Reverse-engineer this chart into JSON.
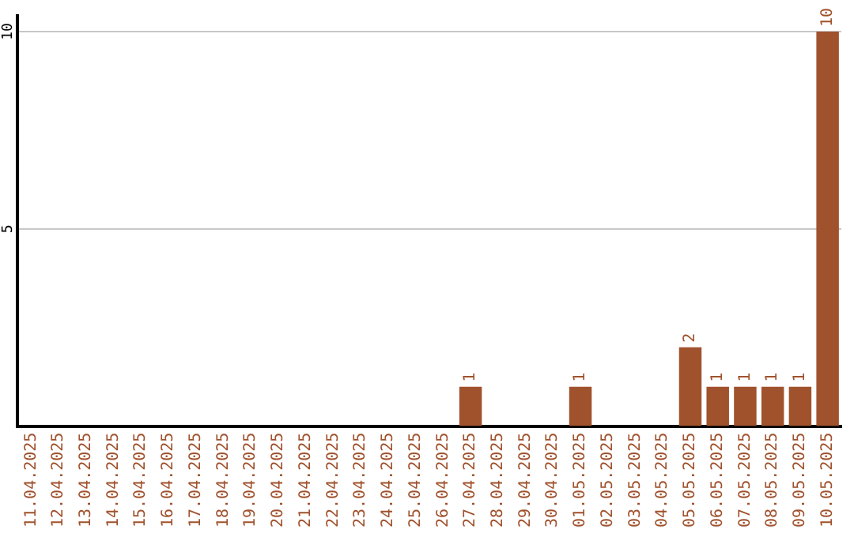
{
  "chart_data": {
    "type": "bar",
    "categories": [
      "11.04.2025",
      "12.04.2025",
      "13.04.2025",
      "14.04.2025",
      "15.04.2025",
      "16.04.2025",
      "17.04.2025",
      "18.04.2025",
      "19.04.2025",
      "20.04.2025",
      "21.04.2025",
      "22.04.2025",
      "23.04.2025",
      "24.04.2025",
      "25.04.2025",
      "26.04.2025",
      "27.04.2025",
      "28.04.2025",
      "29.04.2025",
      "30.04.2025",
      "01.05.2025",
      "02.05.2025",
      "03.05.2025",
      "04.05.2025",
      "05.05.2025",
      "06.05.2025",
      "07.05.2025",
      "08.05.2025",
      "09.05.2025",
      "10.05.2025"
    ],
    "values": [
      0,
      0,
      0,
      0,
      0,
      0,
      0,
      0,
      0,
      0,
      0,
      0,
      0,
      0,
      0,
      0,
      1,
      0,
      0,
      0,
      1,
      0,
      0,
      0,
      2,
      1,
      1,
      1,
      1,
      10
    ],
    "value_labels": [
      null,
      null,
      null,
      null,
      null,
      null,
      null,
      null,
      null,
      null,
      null,
      null,
      null,
      null,
      null,
      null,
      "1",
      null,
      null,
      null,
      "1",
      null,
      null,
      null,
      "2",
      "1",
      "1",
      "1",
      "1",
      "10"
    ],
    "color": "#a0522d",
    "ylim": [
      0,
      10.4
    ],
    "yticks": [
      5,
      10
    ],
    "grid": "y",
    "legend": false
  }
}
